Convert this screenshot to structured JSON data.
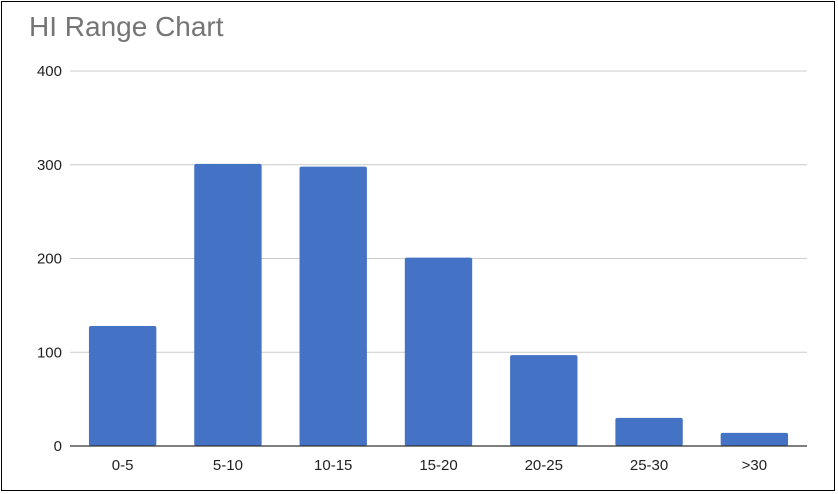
{
  "chart_data": {
    "type": "bar",
    "title": "HI Range Chart",
    "xlabel": "",
    "ylabel": "",
    "categories": [
      "0-5",
      "5-10",
      "10-15",
      "15-20",
      "20-25",
      "25-30",
      ">30"
    ],
    "values": [
      128,
      301,
      298,
      201,
      97,
      30,
      14
    ],
    "ylim": [
      0,
      400
    ],
    "yticks": [
      "0",
      "100",
      "200",
      "300",
      "400"
    ],
    "grid": true,
    "legend": "none",
    "colors": {
      "bar": "#4472c4",
      "grid": "#cccccc",
      "axis": "#333333",
      "title": "#757575"
    }
  }
}
